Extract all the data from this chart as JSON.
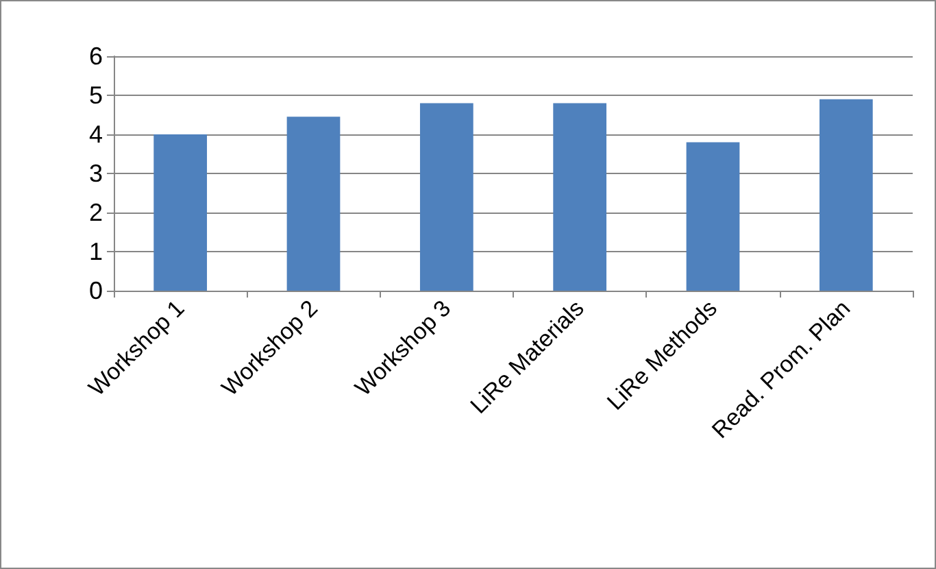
{
  "chart_data": {
    "type": "bar",
    "categories": [
      "Workshop 1",
      "Workshop 2",
      "Workshop 3",
      "LiRe Materials",
      "LiRe Methods",
      "Read. Prom. Plan"
    ],
    "values": [
      4.0,
      4.45,
      4.8,
      4.8,
      3.8,
      4.9
    ],
    "color": "#4f81bd",
    "ylim": [
      0,
      6
    ],
    "yticks": [
      0,
      1,
      2,
      3,
      4,
      5,
      6
    ],
    "grid": "y"
  }
}
